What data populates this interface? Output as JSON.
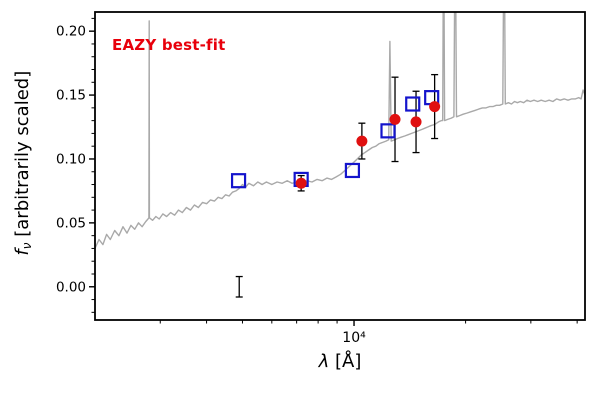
{
  "chart_data": {
    "type": "line",
    "title": "EAZY best-fit",
    "title_color": "#e8000b",
    "xlabel": {
      "symbol": "λ",
      "suffix": " [Å]"
    },
    "ylabel": {
      "symbol": "f",
      "subscript": "ν",
      "suffix": " [arbitrarily scaled]"
    },
    "x_scale": "log",
    "xlim": [
      2000,
      42000
    ],
    "ylim": [
      -0.026,
      0.215
    ],
    "grid": false,
    "legend": "none",
    "yticks": {
      "values": [
        0,
        0.05,
        0.1,
        0.15,
        0.2
      ],
      "labels": [
        "0.00",
        "0.05",
        "0.10",
        "0.15",
        "0.20"
      ],
      "minor_step": 0.01
    },
    "xticks": {
      "major": [
        {
          "value": 10000,
          "label": "10⁴"
        }
      ],
      "minor": [
        3000,
        4000,
        5000,
        6000,
        7000,
        8000,
        9000,
        20000,
        30000,
        40000
      ]
    },
    "spectrum": {
      "name": "best-fit template spectrum",
      "color": "#a9a9a9",
      "points": [
        [
          2000,
          0.03
        ],
        [
          2050,
          0.037
        ],
        [
          2100,
          0.033
        ],
        [
          2150,
          0.041
        ],
        [
          2200,
          0.037
        ],
        [
          2260,
          0.044
        ],
        [
          2320,
          0.04
        ],
        [
          2380,
          0.047
        ],
        [
          2440,
          0.042
        ],
        [
          2500,
          0.048
        ],
        [
          2560,
          0.045
        ],
        [
          2620,
          0.05
        ],
        [
          2680,
          0.047
        ],
        [
          2740,
          0.051
        ],
        [
          2780,
          0.053
        ],
        [
          2795,
          0.054
        ],
        [
          2800,
          0.208
        ],
        [
          2805,
          0.054
        ],
        [
          2860,
          0.052
        ],
        [
          2920,
          0.055
        ],
        [
          2980,
          0.053
        ],
        [
          3050,
          0.057
        ],
        [
          3120,
          0.055
        ],
        [
          3200,
          0.058
        ],
        [
          3280,
          0.056
        ],
        [
          3360,
          0.06
        ],
        [
          3440,
          0.058
        ],
        [
          3530,
          0.062
        ],
        [
          3620,
          0.06
        ],
        [
          3710,
          0.064
        ],
        [
          3800,
          0.062
        ],
        [
          3900,
          0.066
        ],
        [
          4000,
          0.065
        ],
        [
          4100,
          0.068
        ],
        [
          4200,
          0.067
        ],
        [
          4300,
          0.07
        ],
        [
          4400,
          0.069
        ],
        [
          4500,
          0.072
        ],
        [
          4600,
          0.071
        ],
        [
          4700,
          0.074
        ],
        [
          4800,
          0.075
        ],
        [
          4900,
          0.077
        ],
        [
          5000,
          0.08
        ],
        [
          5100,
          0.078
        ],
        [
          5200,
          0.081
        ],
        [
          5350,
          0.079
        ],
        [
          5500,
          0.082
        ],
        [
          5650,
          0.08
        ],
        [
          5800,
          0.082
        ],
        [
          6000,
          0.08
        ],
        [
          6200,
          0.082
        ],
        [
          6400,
          0.081
        ],
        [
          6600,
          0.083
        ],
        [
          6800,
          0.081
        ],
        [
          7000,
          0.082
        ],
        [
          7200,
          0.081
        ],
        [
          7450,
          0.083
        ],
        [
          7700,
          0.082
        ],
        [
          7950,
          0.084
        ],
        [
          8200,
          0.083
        ],
        [
          8450,
          0.085
        ],
        [
          8700,
          0.084
        ],
        [
          8950,
          0.086
        ],
        [
          9200,
          0.088
        ],
        [
          9450,
          0.091
        ],
        [
          9700,
          0.094
        ],
        [
          9950,
          0.097
        ],
        [
          10200,
          0.1
        ],
        [
          10450,
          0.103
        ],
        [
          10700,
          0.105
        ],
        [
          10950,
          0.107
        ],
        [
          11200,
          0.109
        ],
        [
          11450,
          0.11
        ],
        [
          11700,
          0.112
        ],
        [
          11950,
          0.113
        ],
        [
          12200,
          0.114
        ],
        [
          12400,
          0.115
        ],
        [
          12500,
          0.192
        ],
        [
          12600,
          0.114
        ],
        [
          12850,
          0.115
        ],
        [
          13100,
          0.116
        ],
        [
          13400,
          0.117
        ],
        [
          13700,
          0.118
        ],
        [
          14000,
          0.119
        ],
        [
          14300,
          0.12
        ],
        [
          14600,
          0.121
        ],
        [
          14900,
          0.122
        ],
        [
          15200,
          0.123
        ],
        [
          15500,
          0.124
        ],
        [
          15800,
          0.125
        ],
        [
          16100,
          0.126
        ],
        [
          16500,
          0.127
        ],
        [
          16900,
          0.129
        ],
        [
          17200,
          0.13
        ],
        [
          17350,
          0.13
        ],
        [
          17450,
          0.3
        ],
        [
          17550,
          0.13
        ],
        [
          17900,
          0.131
        ],
        [
          18300,
          0.132
        ],
        [
          18600,
          0.133
        ],
        [
          18750,
          0.3
        ],
        [
          18900,
          0.133
        ],
        [
          19300,
          0.134
        ],
        [
          19700,
          0.135
        ],
        [
          20200,
          0.136
        ],
        [
          20700,
          0.137
        ],
        [
          21200,
          0.138
        ],
        [
          21700,
          0.139
        ],
        [
          22200,
          0.14
        ],
        [
          22700,
          0.14
        ],
        [
          23200,
          0.141
        ],
        [
          23700,
          0.141
        ],
        [
          24200,
          0.142
        ],
        [
          24700,
          0.142
        ],
        [
          25200,
          0.143
        ],
        [
          25400,
          0.3
        ],
        [
          25600,
          0.143
        ],
        [
          26100,
          0.144
        ],
        [
          26600,
          0.143
        ],
        [
          27100,
          0.145
        ],
        [
          27600,
          0.144
        ],
        [
          28100,
          0.145
        ],
        [
          28700,
          0.144
        ],
        [
          29300,
          0.146
        ],
        [
          29900,
          0.145
        ],
        [
          30600,
          0.146
        ],
        [
          31300,
          0.145
        ],
        [
          32000,
          0.146
        ],
        [
          32800,
          0.145
        ],
        [
          33600,
          0.146
        ],
        [
          34400,
          0.145
        ],
        [
          35200,
          0.147
        ],
        [
          36000,
          0.146
        ],
        [
          36900,
          0.147
        ],
        [
          37800,
          0.146
        ],
        [
          38700,
          0.147
        ],
        [
          39600,
          0.147
        ],
        [
          40400,
          0.148
        ],
        [
          41000,
          0.147
        ],
        [
          41500,
          0.154
        ],
        [
          42000,
          0.15
        ]
      ]
    },
    "model_photometry": {
      "name": "template photometry",
      "marker": "open-square",
      "color": "#1414cc",
      "size": 13,
      "points": [
        [
          4880,
          0.083
        ],
        [
          7200,
          0.084
        ],
        [
          9900,
          0.091
        ],
        [
          12350,
          0.122
        ],
        [
          14400,
          0.143
        ],
        [
          16200,
          0.148
        ]
      ]
    },
    "observed_photometry": {
      "name": "observed photometry",
      "marker": "filled-circle",
      "color": "#e01010",
      "errorbar_color": "#000000",
      "size": 11,
      "points": [
        {
          "x": 4900,
          "y": 0.0,
          "yerr": 0.008,
          "marker": false
        },
        {
          "x": 7200,
          "y": 0.081,
          "yerr": 0.006,
          "marker": true
        },
        {
          "x": 10500,
          "y": 0.114,
          "yerr": 0.014,
          "marker": true
        },
        {
          "x": 12900,
          "y": 0.131,
          "yerr": 0.033,
          "marker": true
        },
        {
          "x": 14700,
          "y": 0.129,
          "yerr": 0.024,
          "marker": true
        },
        {
          "x": 16500,
          "y": 0.141,
          "yerr": 0.025,
          "marker": true
        }
      ]
    }
  }
}
